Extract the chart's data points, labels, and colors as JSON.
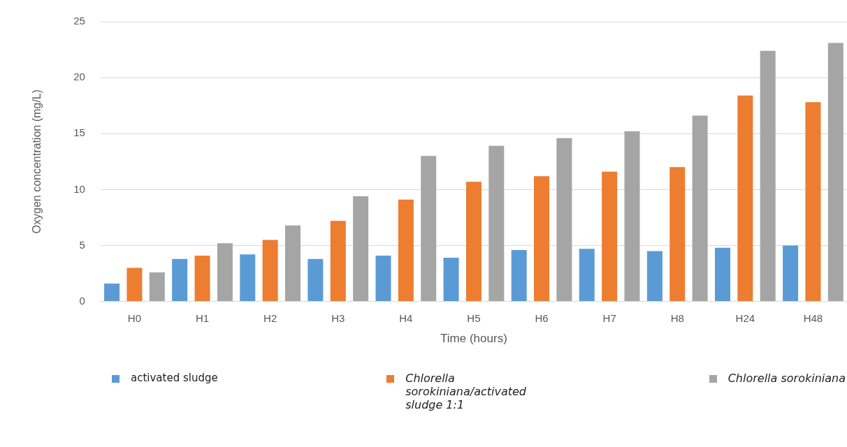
{
  "chart_data": {
    "type": "bar",
    "xlabel": "Time (hours)",
    "ylabel": "Oxygen concentration (mg/L)",
    "categories": [
      "H0",
      "H1",
      "H2",
      "H3",
      "H4",
      "H5",
      "H6",
      "H7",
      "H8",
      "H24",
      "H48"
    ],
    "series": [
      {
        "name": "activated sludge",
        "color": "#5b9bd5",
        "values": [
          1.6,
          3.8,
          4.2,
          3.8,
          4.1,
          3.9,
          4.6,
          4.7,
          4.5,
          4.8,
          5.0
        ]
      },
      {
        "name": "Chlorella sorokiniana/activated sludge 1:1",
        "color": "#ed7d31",
        "values": [
          3.0,
          4.1,
          5.5,
          7.2,
          9.1,
          10.7,
          11.2,
          11.6,
          12.0,
          18.4,
          17.8
        ]
      },
      {
        "name": "Chlorella sorokiniana",
        "color": "#a5a5a5",
        "values": [
          2.6,
          5.2,
          6.8,
          9.4,
          13.0,
          13.9,
          14.6,
          15.2,
          16.6,
          22.4,
          23.1
        ]
      }
    ],
    "ylim": [
      0,
      25
    ],
    "yticks": [
      0,
      5,
      10,
      15,
      20,
      25
    ],
    "grid": "y",
    "legend": "bottom"
  }
}
